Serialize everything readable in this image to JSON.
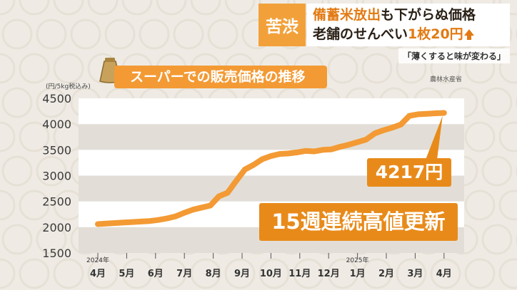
{
  "headline": {
    "tag": "苦渋",
    "line1_pre": "備蓄米放出",
    "line1_post": "も下がらぬ価格",
    "line2_pre": "老舗のせんべい",
    "line2_post": "1枚20円"
  },
  "subcaption": "「薄くすると味が変わる」",
  "source": "農林水産省",
  "colors": {
    "line": "#f39a34",
    "accent": "#e88a1a",
    "band": "#e2ded7"
  },
  "chart_data": {
    "type": "line",
    "title": "スーパーでの販売価格の推移",
    "ylabel": "(円/5kg税込み)",
    "ylim": [
      1500,
      4500
    ],
    "yticks": [
      1500,
      2000,
      2500,
      3000,
      3500,
      4000,
      4500
    ],
    "grid": true,
    "x_labels": [
      "4月",
      "5月",
      "6月",
      "7月",
      "8月",
      "9月",
      "10月",
      "11月",
      "12月",
      "1月",
      "2月",
      "3月",
      "4月"
    ],
    "year_labels": [
      {
        "label": "2024年",
        "month_index": 0
      },
      {
        "label": "2025年",
        "month_index": 9
      }
    ],
    "x": [
      0.0,
      0.3,
      0.6,
      0.9,
      1.2,
      1.5,
      1.8,
      2.1,
      2.4,
      2.7,
      3.0,
      3.3,
      3.6,
      3.9,
      4.2,
      4.5,
      4.8,
      5.1,
      5.4,
      5.7,
      6.0,
      6.3,
      6.6,
      6.9,
      7.2,
      7.5,
      7.8,
      8.1,
      8.4,
      8.7,
      9.0,
      9.3,
      9.6,
      9.9,
      10.2,
      10.5,
      10.8,
      11.1,
      11.4,
      11.7,
      12.0
    ],
    "values": [
      2060,
      2070,
      2080,
      2090,
      2100,
      2110,
      2120,
      2140,
      2170,
      2210,
      2280,
      2340,
      2380,
      2420,
      2600,
      2670,
      2900,
      3120,
      3210,
      3320,
      3380,
      3420,
      3430,
      3450,
      3480,
      3470,
      3500,
      3510,
      3560,
      3600,
      3650,
      3700,
      3820,
      3880,
      3930,
      3990,
      4160,
      4190,
      4200,
      4210,
      4217
    ],
    "annotations": [
      "4217円",
      "15週連続高値更新"
    ]
  }
}
